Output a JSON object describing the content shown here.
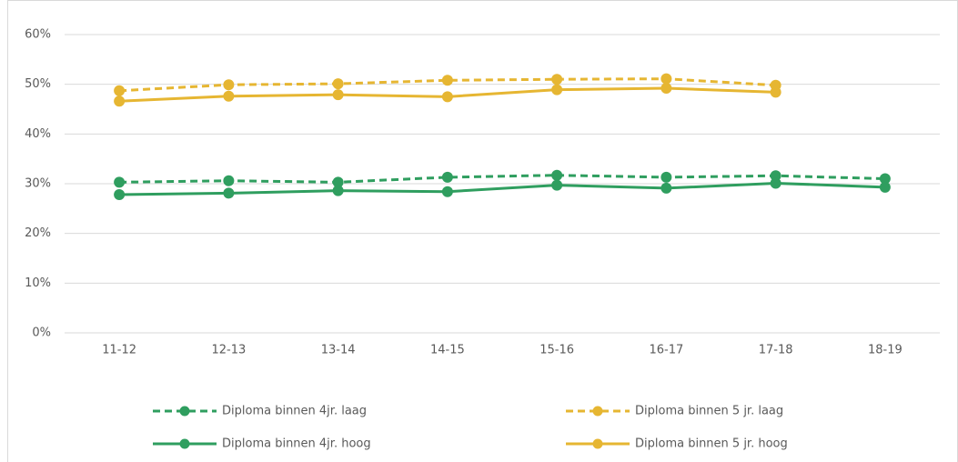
{
  "chart_data": {
    "type": "line",
    "categories": [
      "11-12",
      "12-13",
      "13-14",
      "14-15",
      "15-16",
      "16-17",
      "17-18",
      "18-19"
    ],
    "series": [
      {
        "name": "Diploma binnen 4jr. laag",
        "color": "#2f9e5f",
        "dashed": true,
        "values": [
          30.3,
          30.6,
          30.3,
          31.3,
          31.7,
          31.3,
          31.6,
          31.0
        ]
      },
      {
        "name": "Diploma binnen 5 jr. laag",
        "color": "#e6b632",
        "dashed": true,
        "values": [
          48.7,
          49.9,
          50.1,
          50.8,
          51.0,
          51.1,
          49.8,
          null
        ]
      },
      {
        "name": "Diploma binnen 4jr. hoog",
        "color": "#2f9e5f",
        "dashed": false,
        "values": [
          27.8,
          28.1,
          28.6,
          28.4,
          29.7,
          29.1,
          30.1,
          29.3
        ]
      },
      {
        "name": "Diploma binnen 5 jr. hoog",
        "color": "#e6b632",
        "dashed": false,
        "values": [
          46.6,
          47.6,
          47.9,
          47.5,
          48.9,
          49.2,
          48.4,
          null
        ]
      }
    ],
    "ylim": [
      0,
      60
    ],
    "yticks": [
      {
        "value": 0,
        "label": "0%"
      },
      {
        "value": 10,
        "label": "10%"
      },
      {
        "value": 20,
        "label": "20%"
      },
      {
        "value": 30,
        "label": "30%"
      },
      {
        "value": 40,
        "label": "40%"
      },
      {
        "value": 50,
        "label": "50%"
      },
      {
        "value": 60,
        "label": "60%"
      }
    ],
    "grid": true,
    "legend": "bottom"
  }
}
